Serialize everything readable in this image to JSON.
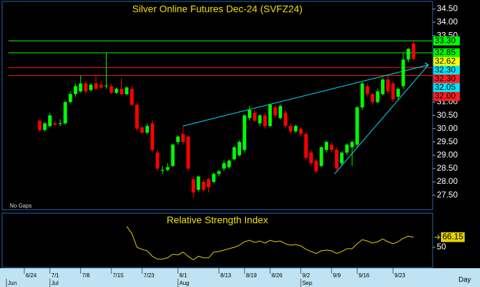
{
  "chart_data": [
    {
      "type": "candlestick",
      "title": "Silver Online Futures Dec-24 (SVFZ24)",
      "note": "No Gaps",
      "x_label": "Day",
      "up_color": "#00ff00",
      "down_color": "#ff0000",
      "open": [
        30.3,
        29.95,
        30.1,
        30.2,
        30.2,
        30.2,
        31.0,
        31.3,
        31.4,
        31.7,
        31.45,
        31.7,
        31.65,
        31.6,
        31.6,
        31.35,
        31.5,
        31.3,
        31.5,
        30.9,
        30.05,
        29.85,
        30.2,
        29.1,
        28.45,
        28.45,
        28.6,
        29.5,
        29.8,
        29.7,
        28.1,
        27.7,
        28.0,
        28.1,
        28.0,
        28.3,
        28.5,
        28.55,
        28.85,
        29.0,
        29.2,
        30.4,
        30.6,
        30.2,
        30.5,
        30.1,
        30.8,
        30.4,
        30.6,
        30.1,
        29.9,
        30.0,
        29.8,
        29.1,
        28.8,
        28.6,
        29.2,
        29.4,
        29.2,
        28.7,
        29.1,
        29.3,
        29.4,
        30.8,
        31.6,
        31.3,
        31.0,
        31.3,
        31.85,
        31.7,
        31.2,
        31.6,
        32.6,
        33.2
      ],
      "high": [
        30.35,
        30.25,
        30.6,
        30.3,
        30.35,
        31.05,
        31.4,
        31.7,
        32.0,
        31.8,
        31.7,
        32.0,
        31.8,
        32.85,
        31.7,
        31.55,
        31.9,
        31.6,
        31.6,
        30.95,
        30.1,
        30.2,
        30.3,
        29.2,
        28.6,
        28.7,
        29.45,
        29.75,
        30.1,
        29.75,
        28.2,
        28.25,
        28.1,
        28.15,
        28.35,
        28.45,
        28.8,
        28.85,
        29.35,
        29.55,
        30.55,
        30.85,
        30.7,
        30.55,
        30.6,
        30.95,
        30.9,
        30.9,
        30.7,
        30.2,
        30.15,
        30.05,
        29.85,
        29.2,
        28.9,
        29.35,
        29.55,
        29.5,
        29.3,
        29.15,
        29.45,
        29.55,
        30.85,
        31.75,
        31.7,
        31.35,
        31.5,
        31.9,
        32.0,
        31.8,
        31.55,
        32.85,
        33.05,
        33.35
      ],
      "low": [
        29.85,
        29.9,
        30.05,
        30.1,
        30.1,
        30.15,
        30.95,
        31.2,
        31.35,
        31.3,
        31.4,
        31.45,
        31.5,
        31.5,
        31.3,
        31.3,
        31.25,
        31.25,
        30.85,
        29.9,
        29.8,
        29.8,
        29.1,
        28.4,
        28.3,
        28.4,
        28.55,
        29.4,
        29.4,
        28.4,
        27.4,
        27.65,
        27.65,
        27.6,
        27.95,
        28.2,
        28.4,
        28.5,
        28.8,
        28.95,
        29.1,
        30.3,
        30.25,
        30.1,
        30.0,
        30.05,
        30.4,
        30.35,
        30.0,
        29.8,
        29.85,
        29.7,
        28.8,
        28.6,
        28.35,
        28.55,
        29.1,
        29.1,
        28.4,
        28.6,
        29.0,
        28.6,
        29.3,
        30.7,
        31.2,
        30.9,
        30.95,
        31.25,
        31.3,
        31.0,
        31.1,
        31.5,
        32.5,
        32.55
      ],
      "close": [
        29.95,
        30.2,
        30.5,
        30.15,
        30.2,
        31.0,
        31.3,
        31.6,
        31.7,
        31.4,
        31.65,
        31.5,
        31.55,
        31.62,
        31.35,
        31.5,
        31.3,
        31.55,
        30.9,
        30.0,
        29.85,
        30.1,
        29.2,
        28.5,
        28.45,
        28.55,
        29.4,
        29.7,
        29.5,
        28.5,
        27.6,
        28.2,
        27.7,
        27.8,
        28.3,
        28.4,
        28.7,
        28.8,
        29.3,
        29.5,
        30.5,
        30.7,
        30.3,
        30.5,
        30.1,
        30.9,
        30.5,
        30.85,
        30.1,
        29.9,
        30.1,
        29.8,
        28.9,
        28.7,
        28.4,
        29.3,
        29.5,
        29.2,
        28.5,
        29.1,
        29.4,
        29.5,
        30.8,
        31.7,
        31.3,
        31.0,
        31.4,
        31.85,
        31.4,
        31.1,
        31.5,
        32.6,
        33.0,
        32.62
      ],
      "xlim": [
        -7.2,
        76.6
      ],
      "ylim": [
        26.98,
        34.76
      ],
      "yticks": [
        {
          "value": 34.5,
          "label": "34.50"
        },
        {
          "value": 34,
          "label": "34.00"
        },
        {
          "value": 33.5,
          "label": "33.50"
        },
        {
          "value": 31,
          "label": "31.00"
        },
        {
          "value": 30.5,
          "label": "30.50"
        },
        {
          "value": 30,
          "label": "30.00"
        },
        {
          "value": 29.5,
          "label": "29.50"
        },
        {
          "value": 29,
          "label": "29.00"
        },
        {
          "value": 28.5,
          "label": "28.50"
        },
        {
          "value": 28,
          "label": "28.00"
        },
        {
          "value": 27.5,
          "label": "27.50"
        }
      ],
      "xticks": [
        {
          "value": -3,
          "label": "6/24"
        },
        {
          "value": 2,
          "label": "7/1"
        },
        {
          "value": 8,
          "label": "7/8"
        },
        {
          "value": 14,
          "label": "7/15"
        },
        {
          "value": 20,
          "label": "7/23"
        },
        {
          "value": 27,
          "label": "8/1"
        },
        {
          "value": 35,
          "label": "8/13"
        },
        {
          "value": 40,
          "label": "8/19"
        },
        {
          "value": 45,
          "label": "8/26"
        },
        {
          "value": 51,
          "label": "9/2"
        },
        {
          "value": 57,
          "label": "9/9"
        },
        {
          "value": 62,
          "label": "9/16"
        },
        {
          "value": 69,
          "label": "9/23"
        }
      ],
      "month_ticks": [
        {
          "value": -6.5,
          "label": "Jun"
        },
        {
          "value": 2,
          "label": "Jul"
        },
        {
          "value": 27,
          "label": "Aug"
        },
        {
          "value": 51,
          "label": "Sep"
        }
      ],
      "price_labels": [
        {
          "value": 33.3,
          "label": "33.30",
          "color": "#00ff00",
          "line": true
        },
        {
          "value": 32.85,
          "label": "32.85",
          "color": "#00ff00",
          "line": true
        },
        {
          "value": 32.62,
          "label": "32.62",
          "color": "#ffff00",
          "line": false
        },
        {
          "value": 32.3,
          "label": "32.30",
          "color": "#00e5ff",
          "line": false
        },
        {
          "value": 32.3,
          "label": "32.30",
          "color": "#ff2020",
          "line": true
        },
        {
          "value": 32.05,
          "label": "32.05",
          "color": "#00e5ff",
          "line": false
        },
        {
          "value": 32.0,
          "label": "32.00",
          "color": "#ff2020",
          "line": true
        }
      ],
      "trendlines": [
        {
          "x": [
            28,
            75.9
          ],
          "y": [
            30.1,
            32.4
          ],
          "color": "#00e5ff"
        },
        {
          "x": [
            57.6,
            75.9
          ],
          "y": [
            28.3,
            32.4
          ],
          "color": "#00e5ff"
        }
      ]
    },
    {
      "type": "line",
      "title": "Relative Strength Index",
      "color": "#e6d200",
      "values": [
        null,
        null,
        null,
        null,
        null,
        null,
        null,
        null,
        null,
        null,
        null,
        null,
        null,
        null,
        null,
        null,
        null,
        83.3,
        72.2,
        50,
        46.7,
        44.4,
        35.6,
        31.1,
        31.1,
        33.3,
        38.9,
        37.8,
        42.2,
        35.6,
        30,
        35.6,
        33.3,
        33.3,
        42.2,
        43.3,
        45.6,
        47.8,
        50,
        53.3,
        58.9,
        61.1,
        57.8,
        60,
        56.7,
        61.1,
        58.9,
        60,
        55.6,
        53.3,
        54.4,
        52.2,
        46.7,
        43.3,
        40,
        44.4,
        45.6,
        44.4,
        40,
        43.3,
        47.8,
        47.8,
        55.6,
        62.2,
        60,
        56.7,
        58.9,
        63.3,
        58.9,
        55.6,
        58.9,
        64.4,
        67.8,
        66.15
      ],
      "value_labels": {
        "73": "66.15"
      },
      "xlim": [
        -7.2,
        76.6
      ],
      "ylim": [
        20,
        100
      ],
      "yticks": [
        50
      ]
    }
  ]
}
